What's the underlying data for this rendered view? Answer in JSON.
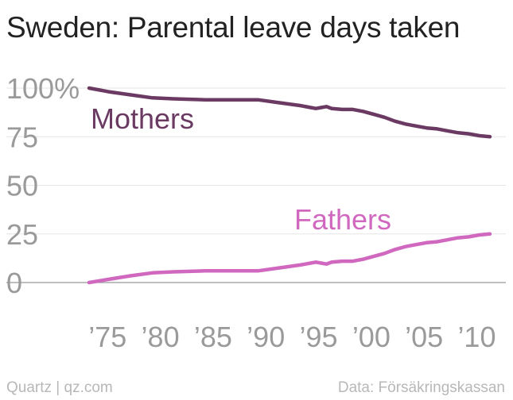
{
  "header": {
    "title": "Sweden: Parental leave days taken"
  },
  "footer": {
    "source_left": "Quartz | qz.com",
    "source_right": "Data: Försäkringskassan"
  },
  "colors": {
    "mothers": "#6b3a62",
    "fathers": "#d068c0",
    "grid": "#e6e6e6",
    "baseline": "#999999"
  },
  "chart_data": {
    "type": "line",
    "title": "Sweden: Parental leave days taken",
    "xlabel": "",
    "ylabel": "",
    "xlim": [
      1974,
      2012
    ],
    "ylim": [
      0,
      100
    ],
    "grid": true,
    "y_ticks": [
      {
        "value": 100,
        "label": "100%"
      },
      {
        "value": 75,
        "label": "75"
      },
      {
        "value": 50,
        "label": "50"
      },
      {
        "value": 25,
        "label": "25"
      },
      {
        "value": 0,
        "label": "0"
      }
    ],
    "x_ticks": [
      {
        "value": 1975,
        "label": "’75"
      },
      {
        "value": 1980,
        "label": "’80"
      },
      {
        "value": 1985,
        "label": "’85"
      },
      {
        "value": 1990,
        "label": "’90"
      },
      {
        "value": 1995,
        "label": "’95"
      },
      {
        "value": 2000,
        "label": "’00"
      },
      {
        "value": 2005,
        "label": "’05"
      },
      {
        "value": 2010,
        "label": "’10"
      }
    ],
    "series": [
      {
        "name": "Mothers",
        "color": "#6b3a62",
        "label": "Mothers",
        "points": [
          [
            1974,
            100
          ],
          [
            1976,
            98
          ],
          [
            1978,
            96.5
          ],
          [
            1980,
            95
          ],
          [
            1982,
            94.5
          ],
          [
            1985,
            94
          ],
          [
            1988,
            94
          ],
          [
            1990,
            94
          ],
          [
            1992,
            92.5
          ],
          [
            1994,
            91
          ],
          [
            1995,
            90
          ],
          [
            1995.5,
            89.5
          ],
          [
            1996,
            90
          ],
          [
            1996.5,
            90.5
          ],
          [
            1997,
            89.5
          ],
          [
            1998,
            89
          ],
          [
            1999,
            89
          ],
          [
            2000,
            88
          ],
          [
            2001,
            86.5
          ],
          [
            2002,
            85
          ],
          [
            2003,
            83
          ],
          [
            2004,
            81.5
          ],
          [
            2005,
            80.5
          ],
          [
            2006,
            79.5
          ],
          [
            2007,
            79
          ],
          [
            2008,
            78
          ],
          [
            2009,
            77
          ],
          [
            2010,
            76.5
          ],
          [
            2011,
            75.5
          ],
          [
            2012,
            75
          ]
        ]
      },
      {
        "name": "Fathers",
        "color": "#d068c0",
        "label": "Fathers",
        "points": [
          [
            1974,
            0
          ],
          [
            1976,
            1.8
          ],
          [
            1978,
            3.5
          ],
          [
            1980,
            5
          ],
          [
            1982,
            5.5
          ],
          [
            1985,
            6
          ],
          [
            1988,
            6
          ],
          [
            1990,
            6
          ],
          [
            1992,
            7.5
          ],
          [
            1994,
            9
          ],
          [
            1995,
            10
          ],
          [
            1995.5,
            10.5
          ],
          [
            1996,
            10
          ],
          [
            1996.5,
            9.5
          ],
          [
            1997,
            10.5
          ],
          [
            1998,
            11
          ],
          [
            1999,
            11
          ],
          [
            2000,
            12
          ],
          [
            2001,
            13.5
          ],
          [
            2002,
            15
          ],
          [
            2003,
            17
          ],
          [
            2004,
            18.5
          ],
          [
            2005,
            19.5
          ],
          [
            2006,
            20.5
          ],
          [
            2007,
            21
          ],
          [
            2008,
            22
          ],
          [
            2009,
            23
          ],
          [
            2010,
            23.5
          ],
          [
            2011,
            24.5
          ],
          [
            2012,
            25
          ]
        ]
      }
    ]
  }
}
